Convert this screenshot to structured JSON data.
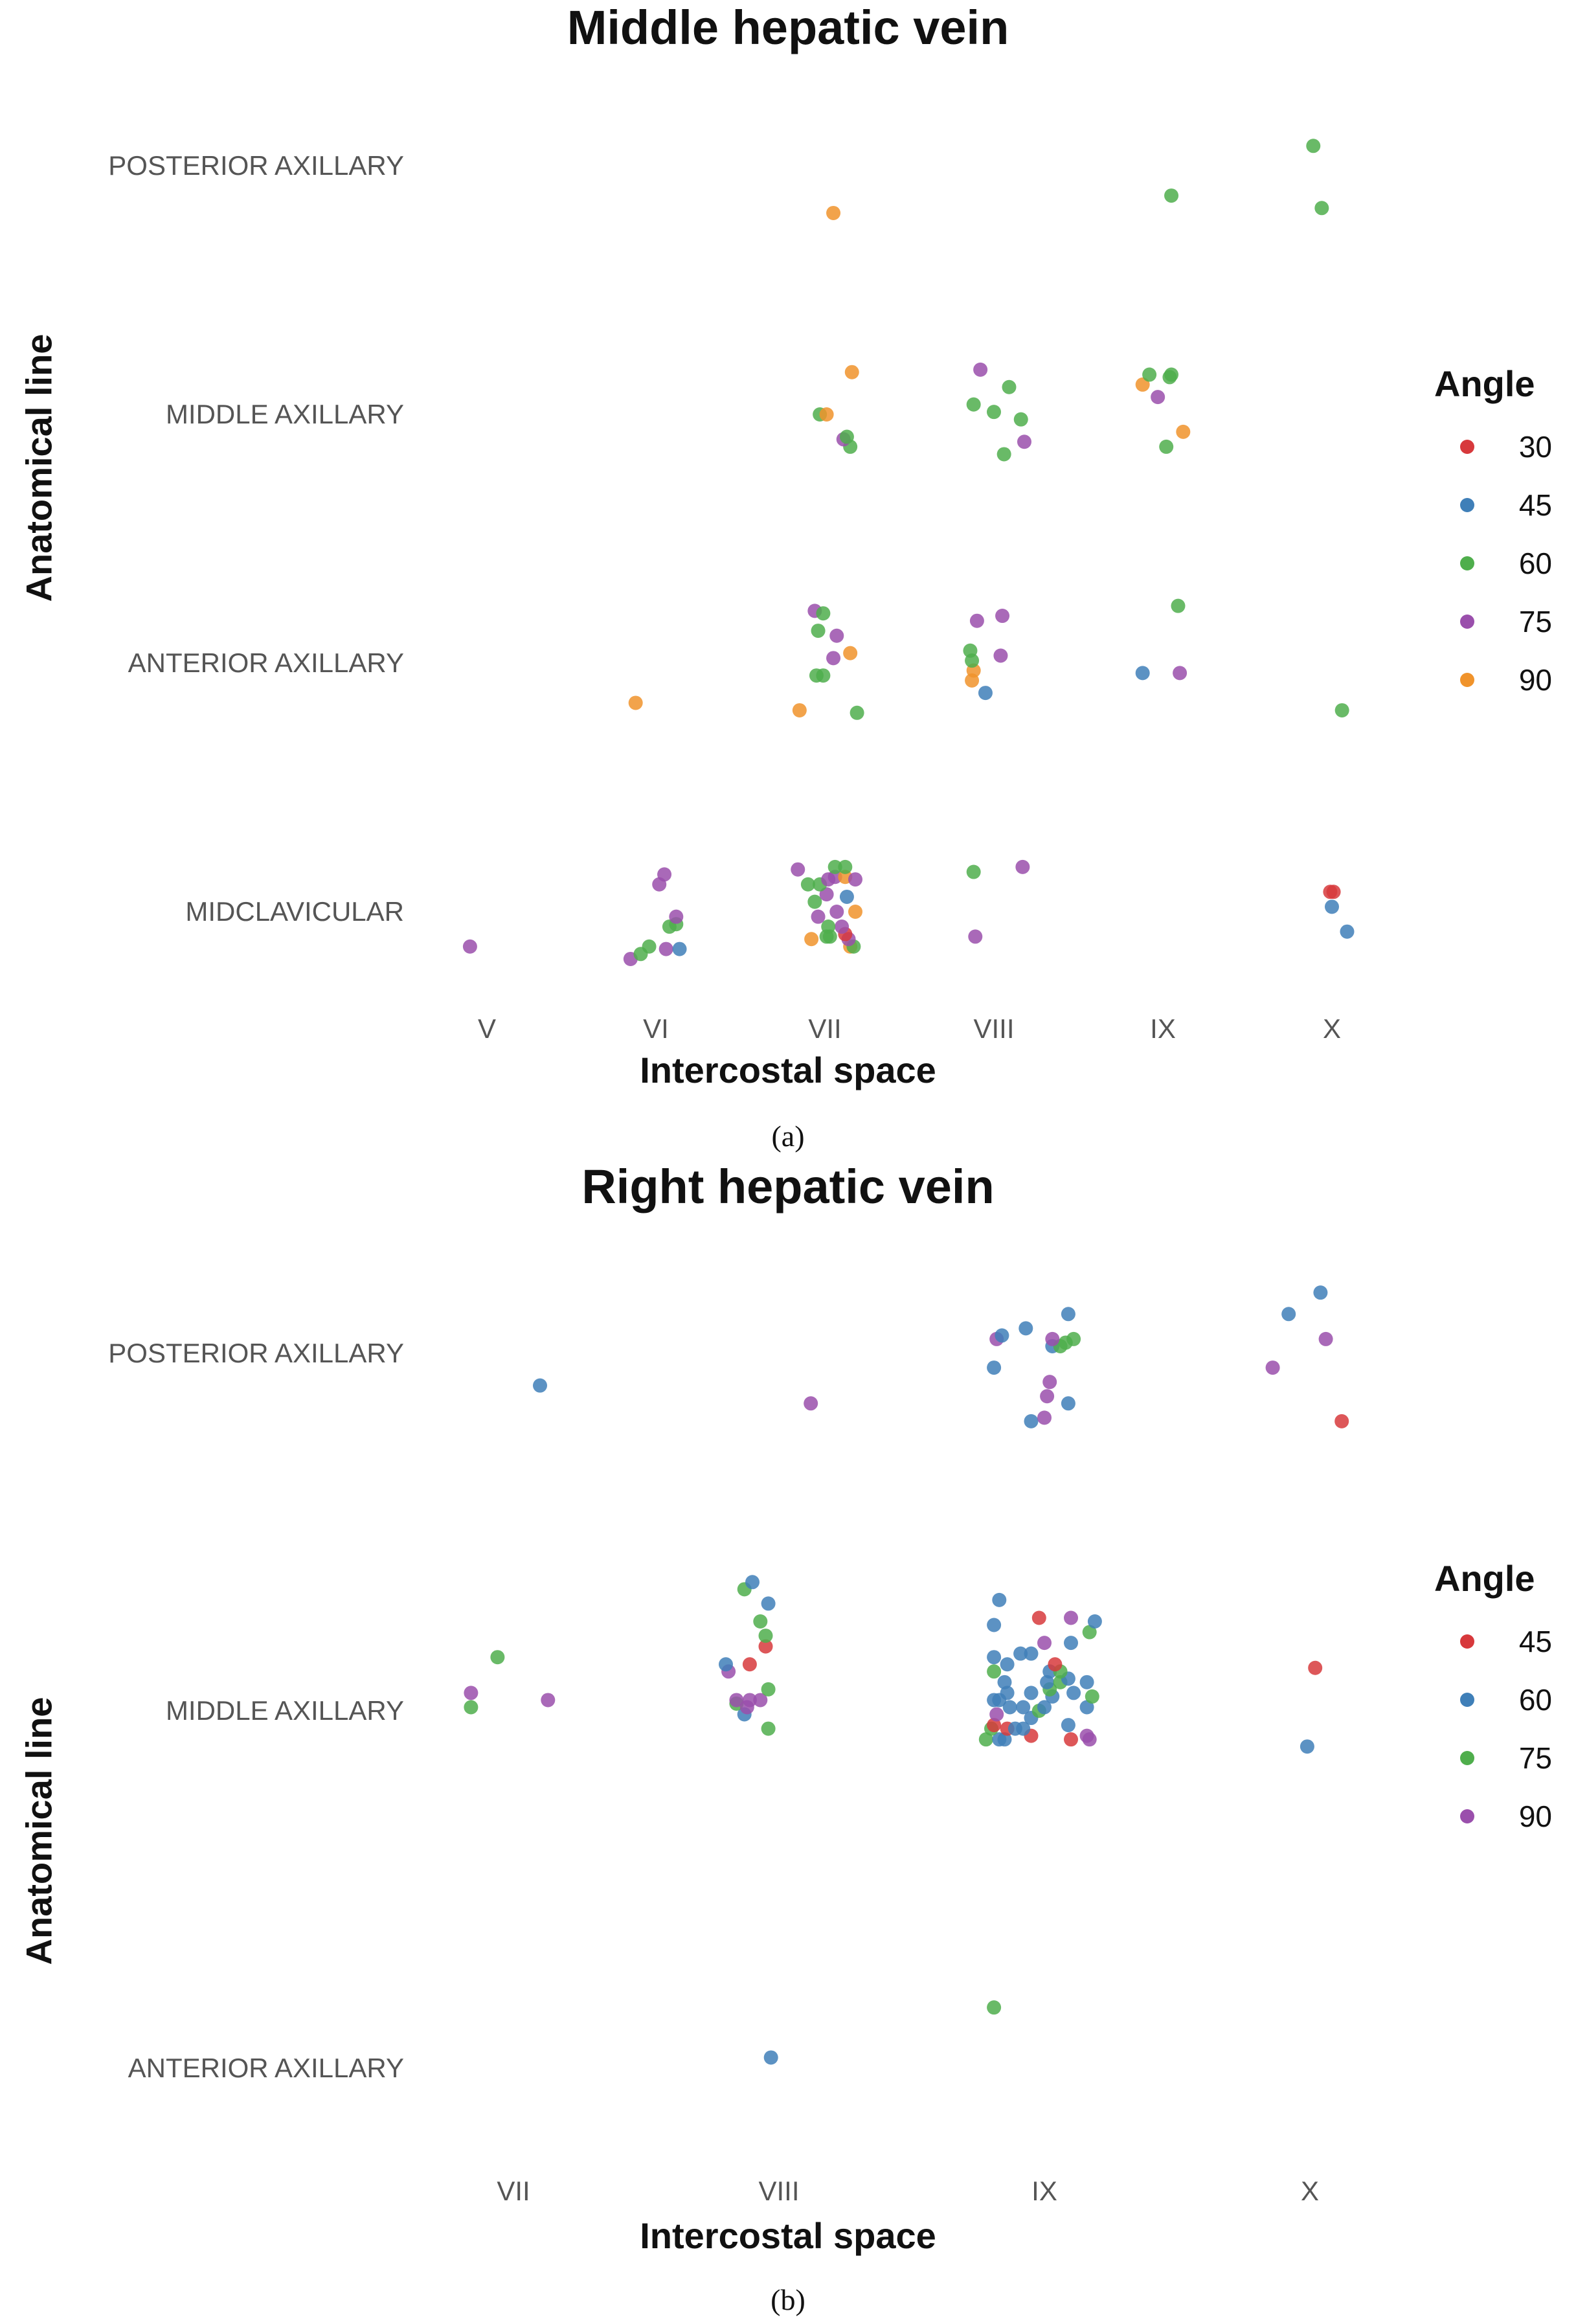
{
  "colors": {
    "30": "#d7393c",
    "45a": "#3f7fb8",
    "60a": "#4fae4c",
    "75a": "#9a4fac",
    "90a": "#f0932b"
  },
  "caption_a": "(a)",
  "caption_b": "(b)",
  "chart_data": [
    {
      "type": "scatter",
      "title": "Middle hepatic vein",
      "xlabel": "Intercostal space",
      "ylabel": "Anatomical line",
      "categories_x": [
        "V",
        "VI",
        "VII",
        "VIII",
        "IX",
        "X"
      ],
      "categories_y": [
        "POSTERIOR AXILLARY",
        "MIDDLE AXILLARY",
        "ANTERIOR AXILLARY",
        "MIDCLAVICULAR"
      ],
      "legend_title": "Angle",
      "legend": [
        {
          "label": "30",
          "color": "#d7393c"
        },
        {
          "label": "45",
          "color": "#3f7fb8"
        },
        {
          "label": "60",
          "color": "#4fae4c"
        },
        {
          "label": "75",
          "color": "#9a4fac"
        },
        {
          "label": "90",
          "color": "#f0932b"
        }
      ],
      "points": [
        {
          "x": 2.05,
          "y": 0.19,
          "angle": 90
        },
        {
          "x": 4.05,
          "y": 0.12,
          "angle": 60
        },
        {
          "x": 4.94,
          "y": 0.17,
          "angle": 60
        },
        {
          "x": 4.89,
          "y": -0.08,
          "angle": 60
        },
        {
          "x": 2.15,
          "y": 1.13,
          "angle": 60
        },
        {
          "x": 2.11,
          "y": 1.1,
          "angle": 75
        },
        {
          "x": 2.13,
          "y": 1.09,
          "angle": 60
        },
        {
          "x": 1.97,
          "y": 1.0,
          "angle": 60
        },
        {
          "x": 2.01,
          "y": 1.0,
          "angle": 90
        },
        {
          "x": 2.16,
          "y": 0.83,
          "angle": 90
        },
        {
          "x": 3.06,
          "y": 1.16,
          "angle": 60
        },
        {
          "x": 3.18,
          "y": 1.11,
          "angle": 75
        },
        {
          "x": 3.16,
          "y": 1.02,
          "angle": 60
        },
        {
          "x": 3.0,
          "y": 0.99,
          "angle": 60
        },
        {
          "x": 2.88,
          "y": 0.96,
          "angle": 60
        },
        {
          "x": 3.09,
          "y": 0.89,
          "angle": 60
        },
        {
          "x": 2.92,
          "y": 0.82,
          "angle": 75
        },
        {
          "x": 4.02,
          "y": 1.13,
          "angle": 60
        },
        {
          "x": 4.12,
          "y": 1.07,
          "angle": 90
        },
        {
          "x": 3.97,
          "y": 0.93,
          "angle": 75
        },
        {
          "x": 3.88,
          "y": 0.88,
          "angle": 90
        },
        {
          "x": 3.92,
          "y": 0.84,
          "angle": 60
        },
        {
          "x": 4.05,
          "y": 0.84,
          "angle": 60
        },
        {
          "x": 4.04,
          "y": 0.85,
          "angle": 60
        },
        {
          "x": 0.88,
          "y": 2.16,
          "angle": 90
        },
        {
          "x": 1.85,
          "y": 2.19,
          "angle": 90
        },
        {
          "x": 2.19,
          "y": 2.2,
          "angle": 60
        },
        {
          "x": 1.95,
          "y": 2.05,
          "angle": 60
        },
        {
          "x": 1.99,
          "y": 2.05,
          "angle": 60
        },
        {
          "x": 2.05,
          "y": 1.98,
          "angle": 75
        },
        {
          "x": 2.15,
          "y": 1.96,
          "angle": 90
        },
        {
          "x": 2.07,
          "y": 1.89,
          "angle": 75
        },
        {
          "x": 1.96,
          "y": 1.87,
          "angle": 60
        },
        {
          "x": 1.94,
          "y": 1.79,
          "angle": 75
        },
        {
          "x": 1.99,
          "y": 1.8,
          "angle": 60
        },
        {
          "x": 2.95,
          "y": 2.12,
          "angle": 45
        },
        {
          "x": 2.87,
          "y": 2.07,
          "angle": 90
        },
        {
          "x": 2.88,
          "y": 2.03,
          "angle": 90
        },
        {
          "x": 2.87,
          "y": 1.99,
          "angle": 60
        },
        {
          "x": 3.04,
          "y": 1.97,
          "angle": 75
        },
        {
          "x": 2.86,
          "y": 1.95,
          "angle": 60
        },
        {
          "x": 2.9,
          "y": 1.83,
          "angle": 75
        },
        {
          "x": 3.05,
          "y": 1.81,
          "angle": 75
        },
        {
          "x": 3.88,
          "y": 2.04,
          "angle": 45
        },
        {
          "x": 4.1,
          "y": 2.04,
          "angle": 75
        },
        {
          "x": 4.09,
          "y": 1.77,
          "angle": 60
        },
        {
          "x": 5.06,
          "y": 2.19,
          "angle": 60
        },
        {
          "x": -0.1,
          "y": 3.14,
          "angle": 75
        },
        {
          "x": 0.85,
          "y": 3.19,
          "angle": 75
        },
        {
          "x": 0.91,
          "y": 3.17,
          "angle": 60
        },
        {
          "x": 0.96,
          "y": 3.14,
          "angle": 60
        },
        {
          "x": 1.06,
          "y": 3.15,
          "angle": 75
        },
        {
          "x": 1.14,
          "y": 3.15,
          "angle": 45
        },
        {
          "x": 1.08,
          "y": 3.06,
          "angle": 60
        },
        {
          "x": 1.12,
          "y": 3.05,
          "angle": 60
        },
        {
          "x": 1.12,
          "y": 3.02,
          "angle": 75
        },
        {
          "x": 1.02,
          "y": 2.89,
          "angle": 75
        },
        {
          "x": 1.05,
          "y": 2.85,
          "angle": 75
        },
        {
          "x": 1.92,
          "y": 3.11,
          "angle": 90
        },
        {
          "x": 2.01,
          "y": 3.1,
          "angle": 60
        },
        {
          "x": 2.03,
          "y": 3.1,
          "angle": 60
        },
        {
          "x": 2.15,
          "y": 3.14,
          "angle": 90
        },
        {
          "x": 2.17,
          "y": 3.14,
          "angle": 60
        },
        {
          "x": 2.14,
          "y": 3.11,
          "angle": 75
        },
        {
          "x": 2.12,
          "y": 3.09,
          "angle": 30
        },
        {
          "x": 2.1,
          "y": 3.06,
          "angle": 75
        },
        {
          "x": 2.02,
          "y": 3.06,
          "angle": 60
        },
        {
          "x": 1.96,
          "y": 3.02,
          "angle": 75
        },
        {
          "x": 2.07,
          "y": 3.0,
          "angle": 75
        },
        {
          "x": 2.18,
          "y": 3.0,
          "angle": 90
        },
        {
          "x": 1.94,
          "y": 2.96,
          "angle": 60
        },
        {
          "x": 2.01,
          "y": 2.93,
          "angle": 75
        },
        {
          "x": 2.13,
          "y": 2.94,
          "angle": 45
        },
        {
          "x": 1.9,
          "y": 2.89,
          "angle": 60
        },
        {
          "x": 1.97,
          "y": 2.89,
          "angle": 60
        },
        {
          "x": 2.02,
          "y": 2.87,
          "angle": 75
        },
        {
          "x": 2.06,
          "y": 2.86,
          "angle": 75
        },
        {
          "x": 2.12,
          "y": 2.86,
          "angle": 90
        },
        {
          "x": 2.18,
          "y": 2.87,
          "angle": 75
        },
        {
          "x": 1.84,
          "y": 2.83,
          "angle": 75
        },
        {
          "x": 2.06,
          "y": 2.82,
          "angle": 60
        },
        {
          "x": 2.12,
          "y": 2.82,
          "angle": 60
        },
        {
          "x": 2.89,
          "y": 3.1,
          "angle": 75
        },
        {
          "x": 2.88,
          "y": 2.84,
          "angle": 60
        },
        {
          "x": 3.17,
          "y": 2.82,
          "angle": 75
        },
        {
          "x": 5.09,
          "y": 3.08,
          "angle": 45
        },
        {
          "x": 5.0,
          "y": 2.98,
          "angle": 45
        },
        {
          "x": 4.99,
          "y": 2.92,
          "angle": 30
        },
        {
          "x": 5.01,
          "y": 2.92,
          "angle": 30
        }
      ]
    },
    {
      "type": "scatter",
      "title": "Right hepatic vein",
      "xlabel": "Intercostal space",
      "ylabel": "Anatomical line",
      "categories_x": [
        "VII",
        "VIII",
        "IX",
        "X"
      ],
      "categories_y": [
        "POSTERIOR AXILLARY",
        "MIDDLE AXILLARY",
        "ANTERIOR AXILLARY"
      ],
      "legend_title": "Angle",
      "legend": [
        {
          "label": "45",
          "color": "#d7393c"
        },
        {
          "label": "60",
          "color": "#3f7fb8"
        },
        {
          "label": "75",
          "color": "#4fae4c"
        },
        {
          "label": "90",
          "color": "#9a4fac"
        }
      ],
      "points": [
        {
          "x": 0.1,
          "y": 0.09,
          "angle": 60
        },
        {
          "x": 1.12,
          "y": 0.14,
          "angle": 90
        },
        {
          "x": 1.95,
          "y": 0.19,
          "angle": 60
        },
        {
          "x": 2.0,
          "y": 0.18,
          "angle": 90
        },
        {
          "x": 2.09,
          "y": 0.14,
          "angle": 60
        },
        {
          "x": 2.01,
          "y": 0.12,
          "angle": 90
        },
        {
          "x": 2.02,
          "y": 0.08,
          "angle": 90
        },
        {
          "x": 1.81,
          "y": 0.04,
          "angle": 60
        },
        {
          "x": 2.03,
          "y": -0.02,
          "angle": 60
        },
        {
          "x": 2.06,
          "y": -0.02,
          "angle": 75
        },
        {
          "x": 2.08,
          "y": -0.03,
          "angle": 75
        },
        {
          "x": 2.11,
          "y": -0.04,
          "angle": 75
        },
        {
          "x": 1.82,
          "y": -0.04,
          "angle": 90
        },
        {
          "x": 1.84,
          "y": -0.05,
          "angle": 60
        },
        {
          "x": 2.03,
          "y": -0.04,
          "angle": 90
        },
        {
          "x": 1.93,
          "y": -0.07,
          "angle": 60
        },
        {
          "x": 2.09,
          "y": -0.11,
          "angle": 60
        },
        {
          "x": 3.12,
          "y": 0.19,
          "angle": 45
        },
        {
          "x": 2.86,
          "y": 0.04,
          "angle": 90
        },
        {
          "x": 3.06,
          "y": -0.04,
          "angle": 90
        },
        {
          "x": 2.92,
          "y": -0.11,
          "angle": 60
        },
        {
          "x": 3.04,
          "y": -0.17,
          "angle": 60
        },
        {
          "x": -0.16,
          "y": 0.99,
          "angle": 75
        },
        {
          "x": -0.16,
          "y": 0.95,
          "angle": 90
        },
        {
          "x": 0.13,
          "y": 0.97,
          "angle": 90
        },
        {
          "x": -0.06,
          "y": 0.85,
          "angle": 75
        },
        {
          "x": 0.96,
          "y": 1.05,
          "angle": 75
        },
        {
          "x": 0.87,
          "y": 1.01,
          "angle": 60
        },
        {
          "x": 0.84,
          "y": 0.98,
          "angle": 75
        },
        {
          "x": 0.93,
          "y": 0.97,
          "angle": 90
        },
        {
          "x": 0.89,
          "y": 0.97,
          "angle": 90
        },
        {
          "x": 0.84,
          "y": 0.97,
          "angle": 90
        },
        {
          "x": 0.88,
          "y": 0.99,
          "angle": 90
        },
        {
          "x": 0.96,
          "y": 0.94,
          "angle": 75
        },
        {
          "x": 0.81,
          "y": 0.89,
          "angle": 90
        },
        {
          "x": 0.8,
          "y": 0.87,
          "angle": 60
        },
        {
          "x": 0.89,
          "y": 0.87,
          "angle": 45
        },
        {
          "x": 0.95,
          "y": 0.82,
          "angle": 45
        },
        {
          "x": 0.95,
          "y": 0.79,
          "angle": 75
        },
        {
          "x": 0.93,
          "y": 0.75,
          "angle": 75
        },
        {
          "x": 0.96,
          "y": 0.7,
          "angle": 60
        },
        {
          "x": 0.87,
          "y": 0.66,
          "angle": 75
        },
        {
          "x": 0.9,
          "y": 0.64,
          "angle": 60
        },
        {
          "x": 1.78,
          "y": 1.08,
          "angle": 75
        },
        {
          "x": 1.83,
          "y": 1.08,
          "angle": 60
        },
        {
          "x": 1.85,
          "y": 1.08,
          "angle": 60
        },
        {
          "x": 1.95,
          "y": 1.07,
          "angle": 45
        },
        {
          "x": 2.1,
          "y": 1.08,
          "angle": 45
        },
        {
          "x": 2.16,
          "y": 1.07,
          "angle": 90
        },
        {
          "x": 2.17,
          "y": 1.08,
          "angle": 90
        },
        {
          "x": 1.8,
          "y": 1.05,
          "angle": 75
        },
        {
          "x": 1.81,
          "y": 1.04,
          "angle": 45
        },
        {
          "x": 1.86,
          "y": 1.05,
          "angle": 45
        },
        {
          "x": 1.89,
          "y": 1.05,
          "angle": 60
        },
        {
          "x": 1.92,
          "y": 1.05,
          "angle": 60
        },
        {
          "x": 2.09,
          "y": 1.04,
          "angle": 60
        },
        {
          "x": 1.82,
          "y": 1.01,
          "angle": 90
        },
        {
          "x": 1.95,
          "y": 1.02,
          "angle": 60
        },
        {
          "x": 1.98,
          "y": 1.0,
          "angle": 75
        },
        {
          "x": 1.92,
          "y": 0.99,
          "angle": 60
        },
        {
          "x": 1.87,
          "y": 0.99,
          "angle": 60
        },
        {
          "x": 2.0,
          "y": 0.99,
          "angle": 60
        },
        {
          "x": 2.16,
          "y": 0.99,
          "angle": 60
        },
        {
          "x": 1.81,
          "y": 0.97,
          "angle": 60
        },
        {
          "x": 1.83,
          "y": 0.97,
          "angle": 60
        },
        {
          "x": 2.03,
          "y": 0.96,
          "angle": 60
        },
        {
          "x": 2.18,
          "y": 0.96,
          "angle": 75
        },
        {
          "x": 1.86,
          "y": 0.95,
          "angle": 60
        },
        {
          "x": 1.95,
          "y": 0.95,
          "angle": 60
        },
        {
          "x": 2.11,
          "y": 0.95,
          "angle": 60
        },
        {
          "x": 2.02,
          "y": 0.94,
          "angle": 75
        },
        {
          "x": 2.16,
          "y": 0.92,
          "angle": 60
        },
        {
          "x": 1.85,
          "y": 0.92,
          "angle": 60
        },
        {
          "x": 2.01,
          "y": 0.92,
          "angle": 60
        },
        {
          "x": 2.06,
          "y": 0.92,
          "angle": 75
        },
        {
          "x": 2.09,
          "y": 0.91,
          "angle": 60
        },
        {
          "x": 1.81,
          "y": 0.89,
          "angle": 75
        },
        {
          "x": 2.02,
          "y": 0.89,
          "angle": 60
        },
        {
          "x": 2.06,
          "y": 0.89,
          "angle": 75
        },
        {
          "x": 2.04,
          "y": 0.87,
          "angle": 45
        },
        {
          "x": 1.86,
          "y": 0.87,
          "angle": 60
        },
        {
          "x": 1.81,
          "y": 0.85,
          "angle": 60
        },
        {
          "x": 1.91,
          "y": 0.84,
          "angle": 60
        },
        {
          "x": 1.95,
          "y": 0.84,
          "angle": 60
        },
        {
          "x": 2.0,
          "y": 0.81,
          "angle": 90
        },
        {
          "x": 2.1,
          "y": 0.81,
          "angle": 60
        },
        {
          "x": 2.17,
          "y": 0.78,
          "angle": 75
        },
        {
          "x": 2.19,
          "y": 0.75,
          "angle": 60
        },
        {
          "x": 1.81,
          "y": 0.76,
          "angle": 60
        },
        {
          "x": 1.98,
          "y": 0.74,
          "angle": 45
        },
        {
          "x": 2.1,
          "y": 0.74,
          "angle": 90
        },
        {
          "x": 1.83,
          "y": 0.69,
          "angle": 60
        },
        {
          "x": 2.99,
          "y": 1.1,
          "angle": 60
        },
        {
          "x": 3.02,
          "y": 0.88,
          "angle": 45
        },
        {
          "x": 0.97,
          "y": 1.97,
          "angle": 60
        },
        {
          "x": 1.81,
          "y": 1.83,
          "angle": 75
        }
      ]
    }
  ]
}
